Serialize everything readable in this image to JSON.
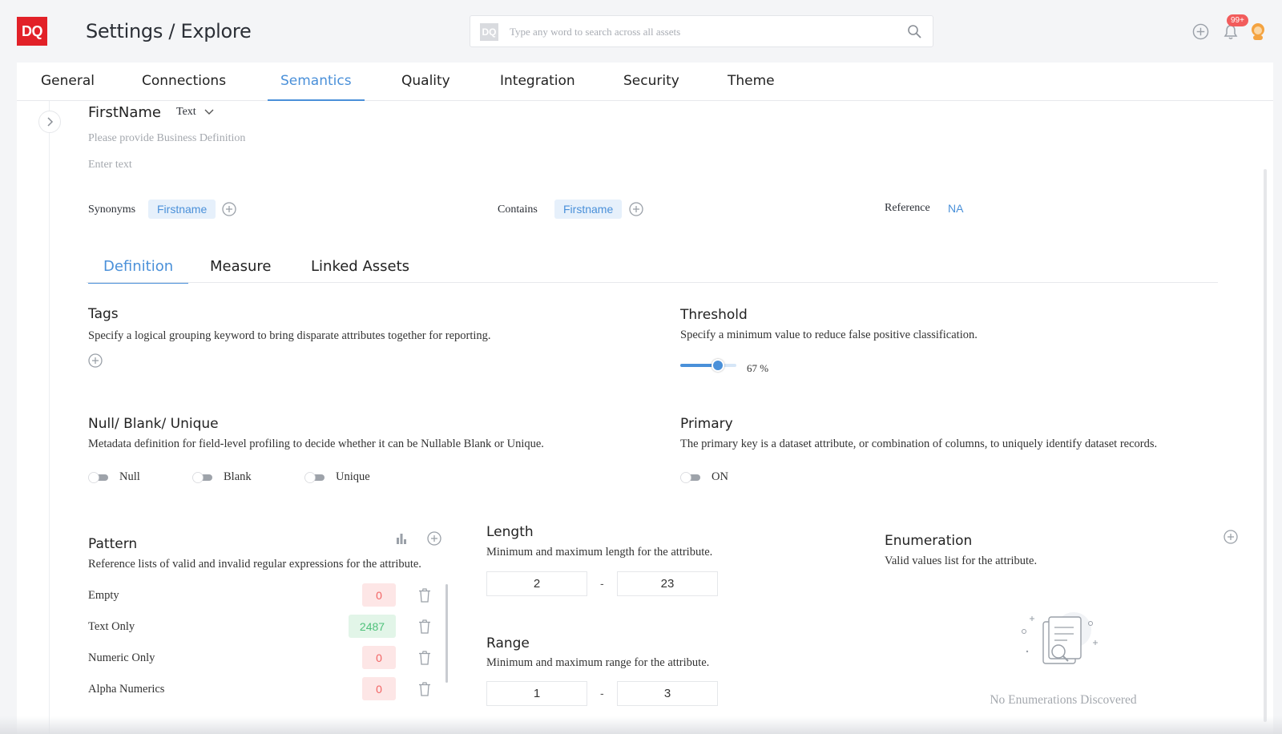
{
  "header": {
    "logo_text": "DQ",
    "title": "Settings / Explore",
    "search": {
      "logo_text": "DQ",
      "placeholder": "Type any word to search across all assets",
      "value": ""
    },
    "notification_badge": "99+"
  },
  "tabs": [
    {
      "label": "General"
    },
    {
      "label": "Connections"
    },
    {
      "label": "Semantics"
    },
    {
      "label": "Quality"
    },
    {
      "label": "Integration"
    },
    {
      "label": "Security"
    },
    {
      "label": "Theme"
    }
  ],
  "active_tab": "Semantics",
  "field": {
    "name": "FirstName",
    "type": "Text",
    "definition_placeholder": "Please provide Business Definition",
    "text_placeholder": "Enter text",
    "synonyms_label": "Synonyms",
    "synonyms": [
      "Firstname"
    ],
    "contains_label": "Contains",
    "contains": [
      "Firstname"
    ],
    "reference_label": "Reference",
    "reference_value": "NA"
  },
  "subtabs": [
    {
      "label": "Definition"
    },
    {
      "label": "Measure"
    },
    {
      "label": "Linked Assets"
    }
  ],
  "active_subtab": "Definition",
  "tags": {
    "title": "Tags",
    "description": "Specify a logical grouping keyword to bring disparate attributes together for reporting."
  },
  "threshold": {
    "title": "Threshold",
    "description": "Specify a minimum value to reduce false positive classification.",
    "value_percent": 67,
    "value_label": "67 %"
  },
  "null_blank_unique": {
    "title": "Null/ Blank/ Unique",
    "description": "Metadata definition for field-level profiling to decide whether it can be Nullable Blank or Unique.",
    "toggles": [
      {
        "label": "Null",
        "on": false
      },
      {
        "label": "Blank",
        "on": false
      },
      {
        "label": "Unique",
        "on": false
      }
    ]
  },
  "primary": {
    "title": "Primary",
    "description": "The primary key is a dataset attribute, or combination of columns, to uniquely identify dataset records.",
    "toggle_label": "ON",
    "on": false
  },
  "pattern": {
    "title": "Pattern",
    "description": "Reference lists of valid and invalid regular expressions for the attribute.",
    "rows": [
      {
        "label": "Empty",
        "count": "0",
        "status": "invalid"
      },
      {
        "label": "Text Only",
        "count": "2487",
        "status": "valid"
      },
      {
        "label": "Numeric Only",
        "count": "0",
        "status": "invalid"
      },
      {
        "label": "Alpha Numerics",
        "count": "0",
        "status": "invalid"
      }
    ]
  },
  "length": {
    "title": "Length",
    "description": "Minimum and maximum length for the attribute.",
    "min": "2",
    "max": "23",
    "separator": "-"
  },
  "range": {
    "title": "Range",
    "description": "Minimum and maximum range for the attribute.",
    "min": "1",
    "max": "3",
    "separator": "-"
  },
  "enumeration": {
    "title": "Enumeration",
    "description": "Valid values list for the attribute.",
    "empty_text": "No Enumerations Discovered"
  },
  "colors": {
    "accent": "#4a90d9",
    "brand": "#e22128",
    "invalid": "#f26464",
    "valid": "#4fc17b"
  }
}
